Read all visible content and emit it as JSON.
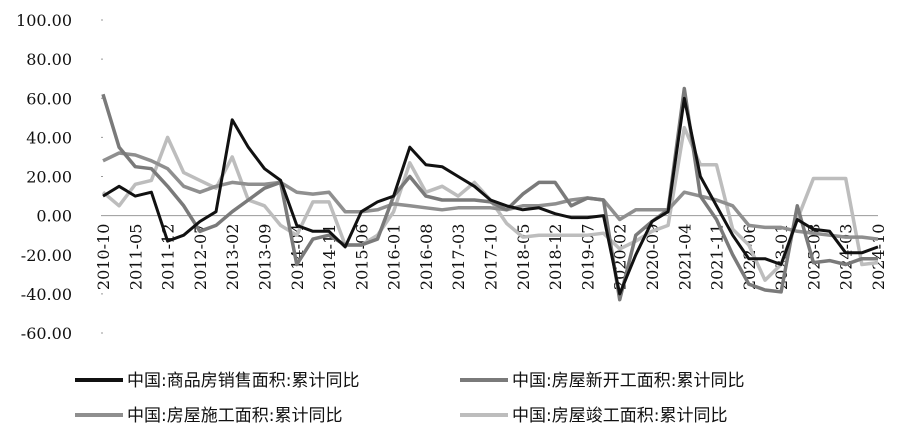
{
  "chart_data": {
    "type": "line",
    "categories": [
      "2010-10",
      null,
      "2011-05",
      null,
      "2011-12",
      null,
      "2012-07",
      null,
      "2013-02",
      null,
      "2013-09",
      null,
      "2014-04",
      null,
      "2014-11",
      null,
      "2015-06",
      null,
      "2016-01",
      null,
      "2016-08",
      null,
      "2017-03",
      null,
      "2017-10",
      null,
      "2018-05",
      null,
      "2018-12",
      null,
      "2019-07",
      null,
      "2020-02",
      null,
      "2020-09",
      null,
      "2021-04",
      null,
      "2021-11",
      null,
      "2022-06",
      null,
      "2023-01",
      null,
      "2023-08",
      null,
      "2024-03",
      null,
      "2024-10"
    ],
    "series": [
      {
        "name": "中国:商品房销售面积:累计同比",
        "color": "#111111",
        "values": [
          10,
          15,
          10,
          12,
          -13,
          -10,
          -3,
          2,
          49,
          35,
          24,
          18,
          -5,
          -8,
          -8,
          -16,
          2,
          7,
          10,
          35,
          26,
          25,
          20,
          15,
          8,
          5,
          3,
          4,
          1,
          -1,
          -1,
          0,
          -40,
          -20,
          -3,
          2,
          60,
          20,
          5,
          -10,
          -22,
          -22,
          -25,
          -2,
          -7,
          -8,
          -19,
          -19,
          -16
        ]
      },
      {
        "name": "中国:房屋新开工面积:累计同比",
        "color": "#7a7a7a",
        "values": [
          62,
          35,
          25,
          24,
          15,
          5,
          -8,
          -5,
          2,
          8,
          14,
          17,
          -25,
          -12,
          -10,
          -15,
          -15,
          -12,
          10,
          20,
          10,
          8,
          8,
          8,
          7,
          3,
          11,
          17,
          17,
          5,
          9,
          8,
          -43,
          -10,
          -3,
          3,
          65,
          10,
          -2,
          -20,
          -35,
          -38,
          -39,
          5,
          -24,
          -23,
          -25,
          -22,
          -22
        ]
      },
      {
        "name": "中国:房屋施工面积:累计同比",
        "color": "#8f8f8f",
        "values": [
          28,
          32,
          31,
          28,
          24,
          15,
          12,
          15,
          17,
          16,
          16,
          17,
          12,
          11,
          12,
          2,
          2,
          3,
          6,
          5,
          4,
          3,
          4,
          4,
          4,
          3,
          5,
          5,
          6,
          8,
          9,
          8,
          -2,
          3,
          3,
          3,
          12,
          10,
          8,
          5,
          -5,
          -6,
          -6,
          -8,
          -9,
          -10,
          -11,
          -11,
          -12
        ]
      },
      {
        "name": "中国:房屋竣工面积:累计同比",
        "color": "#bdbdbd",
        "values": [
          12,
          5,
          16,
          18,
          40,
          22,
          18,
          14,
          30,
          8,
          5,
          -5,
          -10,
          7,
          7,
          -15,
          -15,
          -10,
          2,
          27,
          12,
          15,
          10,
          17,
          8,
          -4,
          -11,
          -10,
          -10,
          -10,
          -10,
          -9,
          -17,
          -13,
          -8,
          -5,
          45,
          26,
          26,
          -7,
          -15,
          -33,
          -25,
          -2,
          19,
          19,
          19,
          -25,
          -24
        ]
      }
    ],
    "ylim": [
      -60,
      100
    ],
    "yticks": [
      {
        "value": 100,
        "label": "100.00"
      },
      {
        "value": 80,
        "label": "80.00"
      },
      {
        "value": 60,
        "label": "60.00"
      },
      {
        "value": 40,
        "label": "40.00"
      },
      {
        "value": 20,
        "label": "20.00"
      },
      {
        "value": 0,
        "label": "0.00"
      },
      {
        "value": -20,
        "label": "-20.00"
      },
      {
        "value": -40,
        "label": "-40.00"
      },
      {
        "value": -60,
        "label": "-60.00"
      }
    ]
  }
}
